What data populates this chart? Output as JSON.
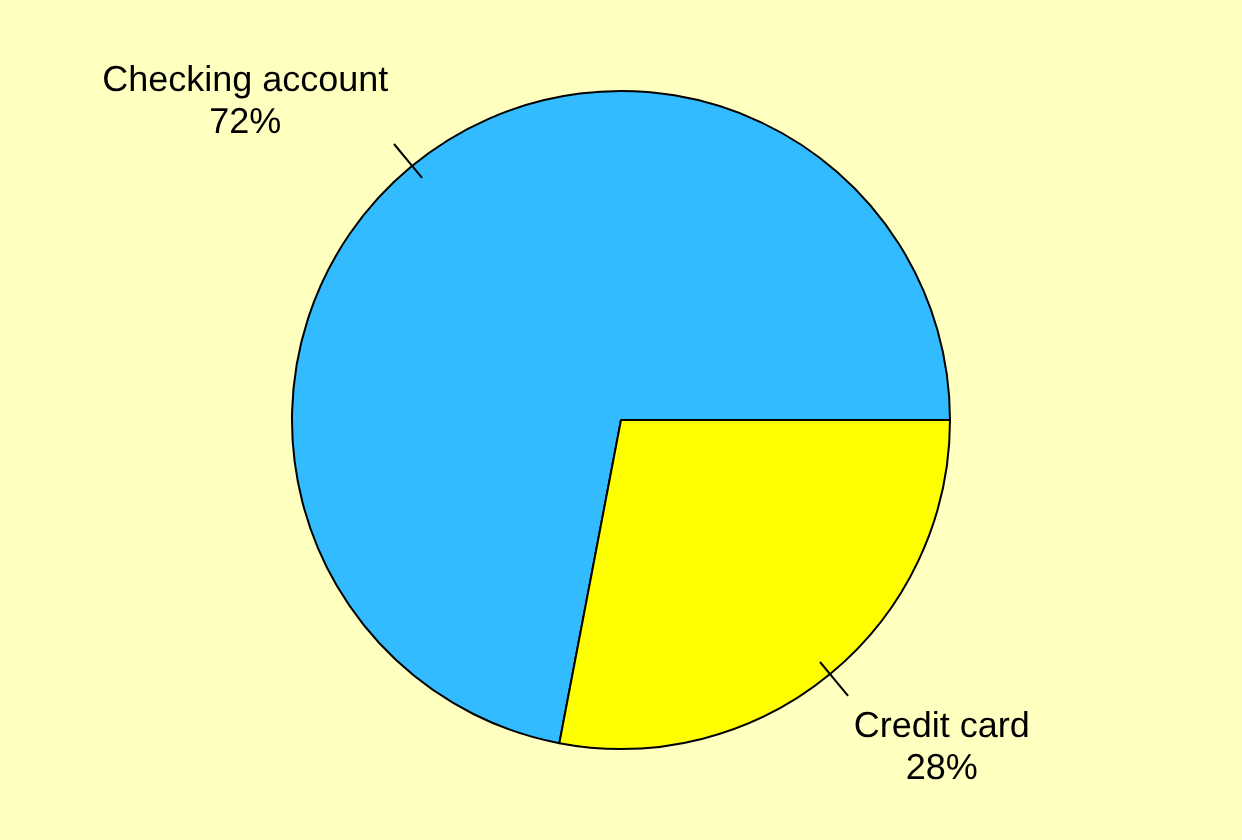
{
  "chart_data": {
    "type": "pie",
    "categories": [
      "Checking account",
      "Credit card"
    ],
    "values": [
      72,
      28
    ],
    "colors": [
      "#33bbff",
      "#ffff00"
    ],
    "value_labels": [
      "72%",
      "28%"
    ],
    "legend": false
  }
}
